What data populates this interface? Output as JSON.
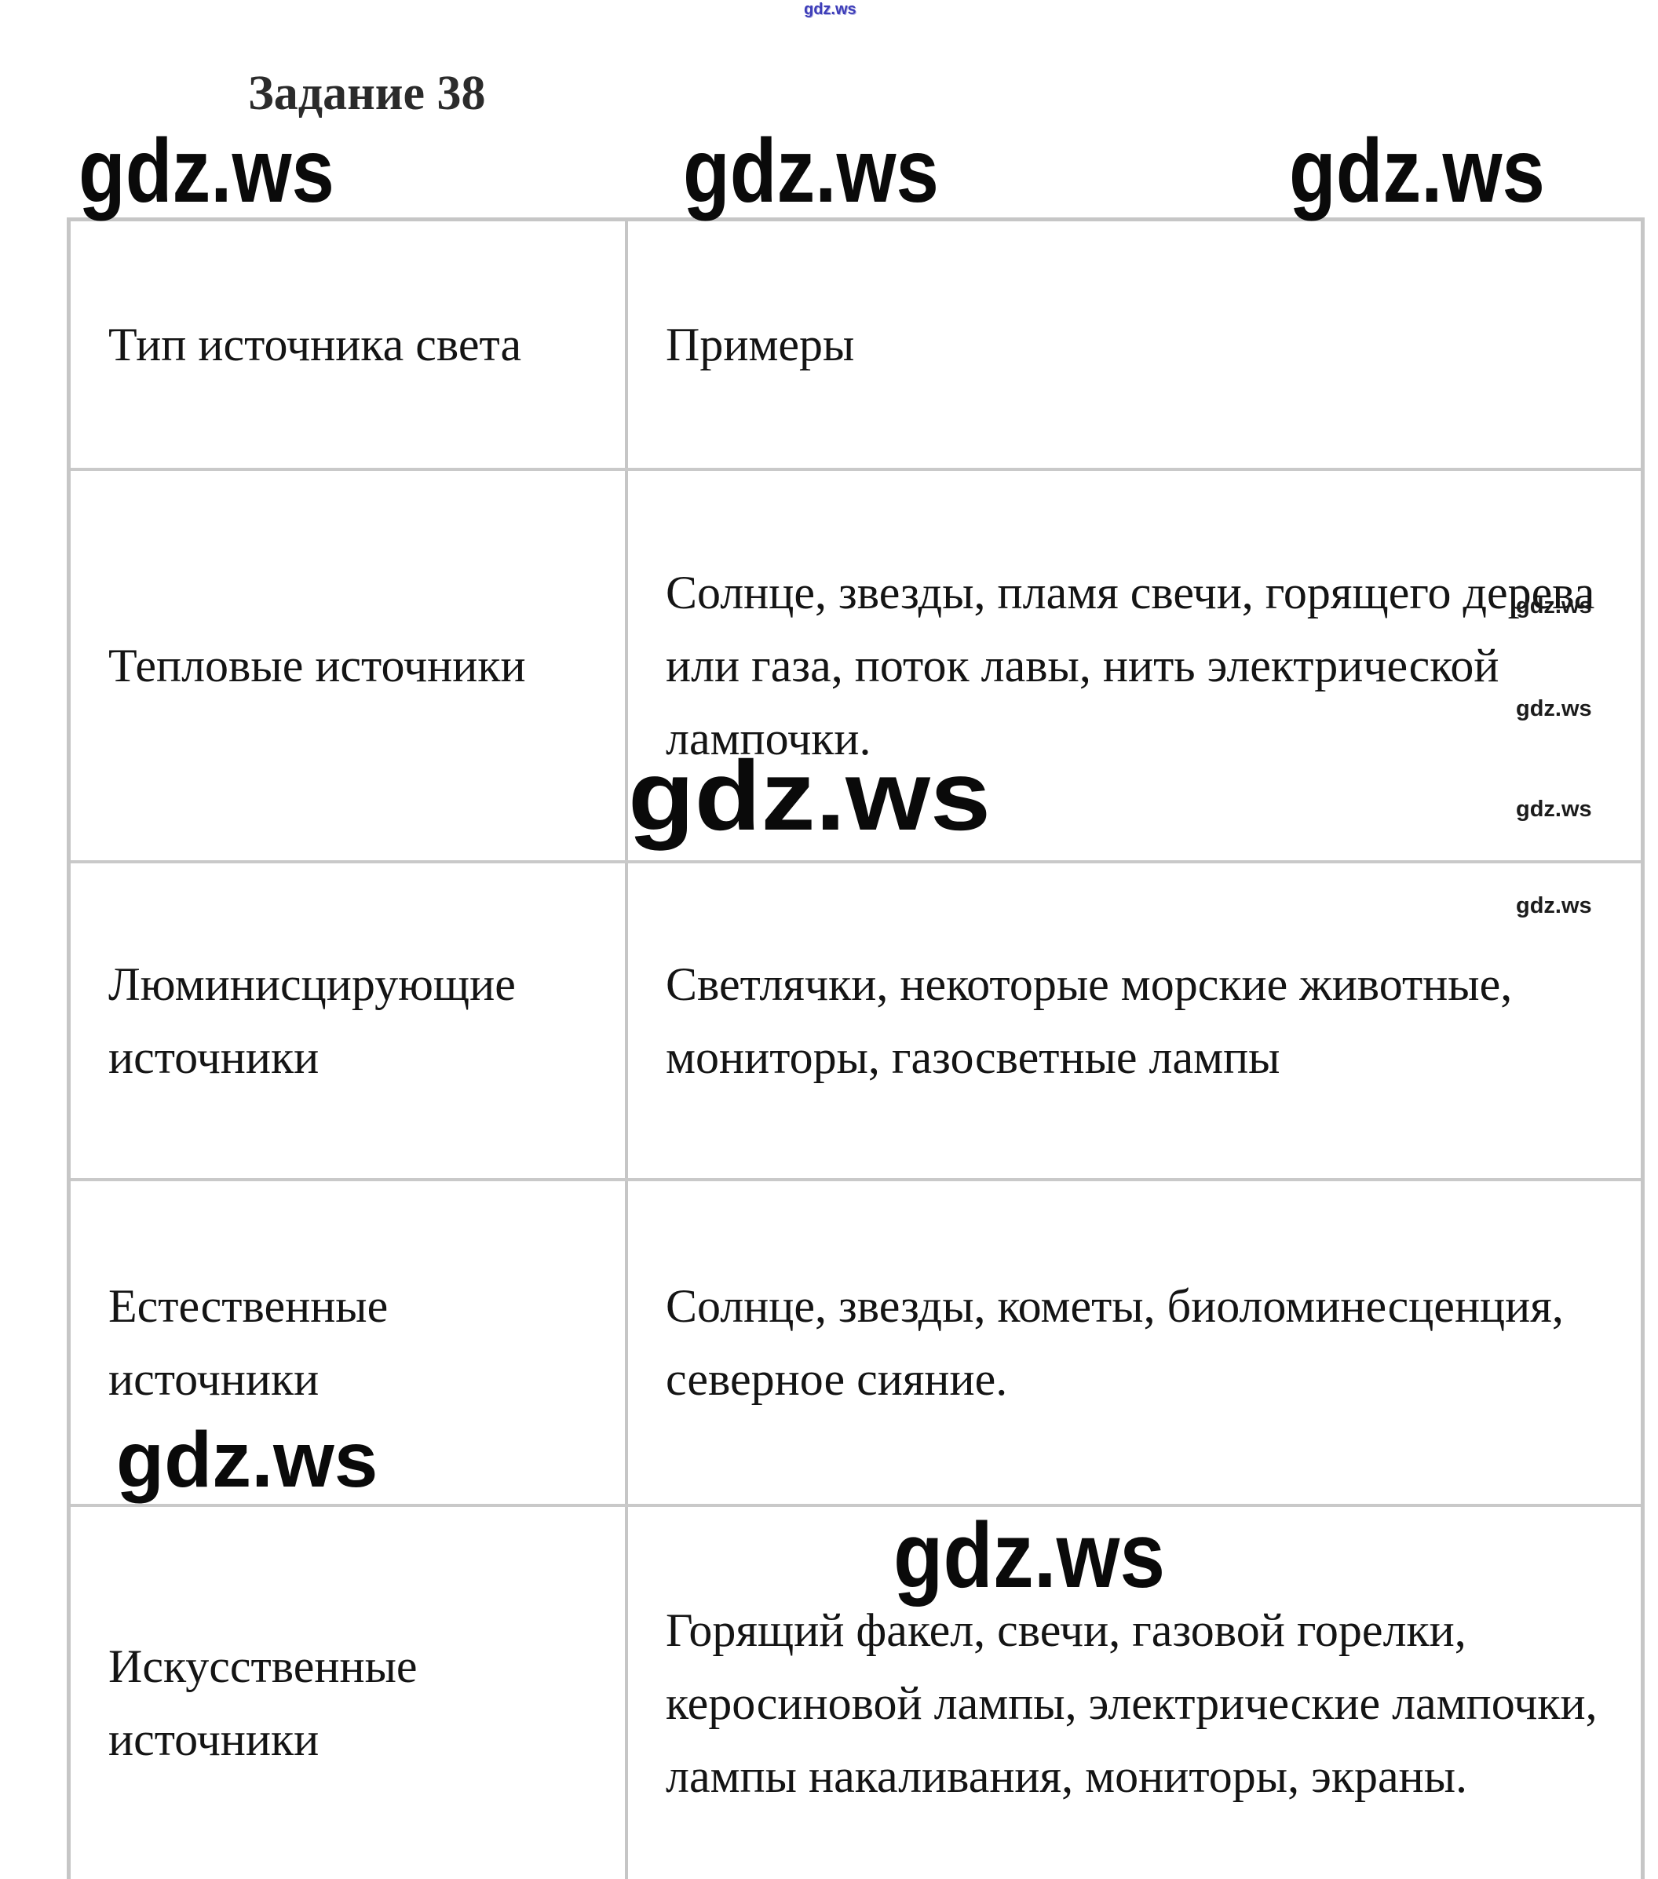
{
  "page": {
    "title": "Задание 38",
    "watermark": "gdz.ws",
    "colors": {
      "watermark_blue": "#3d3db8",
      "watermark_black": "#0a0a0a",
      "table_border_gray": "#c6c6c6",
      "text_color": "#141414"
    }
  },
  "table": {
    "header": {
      "type_col": "Тип источника света",
      "examples_col": "Примеры"
    },
    "rows": [
      {
        "type": "Тепловые источники",
        "examples": "Солнце, звезды, пламя свечи, горящего дерева\nили газа, поток лавы, нить электрической\nлампочки."
      },
      {
        "type": "Люминисцирующие\nисточники",
        "examples": "Светлячки, некоторые морские животные,\nмониторы, газосветные лампы"
      },
      {
        "type": "Естественные\nисточники",
        "examples": "Солнце, звезды, кометы, биоломинесценция,\nсеверное сияние."
      },
      {
        "type": "Искусственные\nисточники",
        "examples": "Горящий факел, свечи, газовой горелки,\nкеросиновой лампы, электрические лампочки,\nлампы накаливания, мониторы, экраны."
      }
    ]
  }
}
